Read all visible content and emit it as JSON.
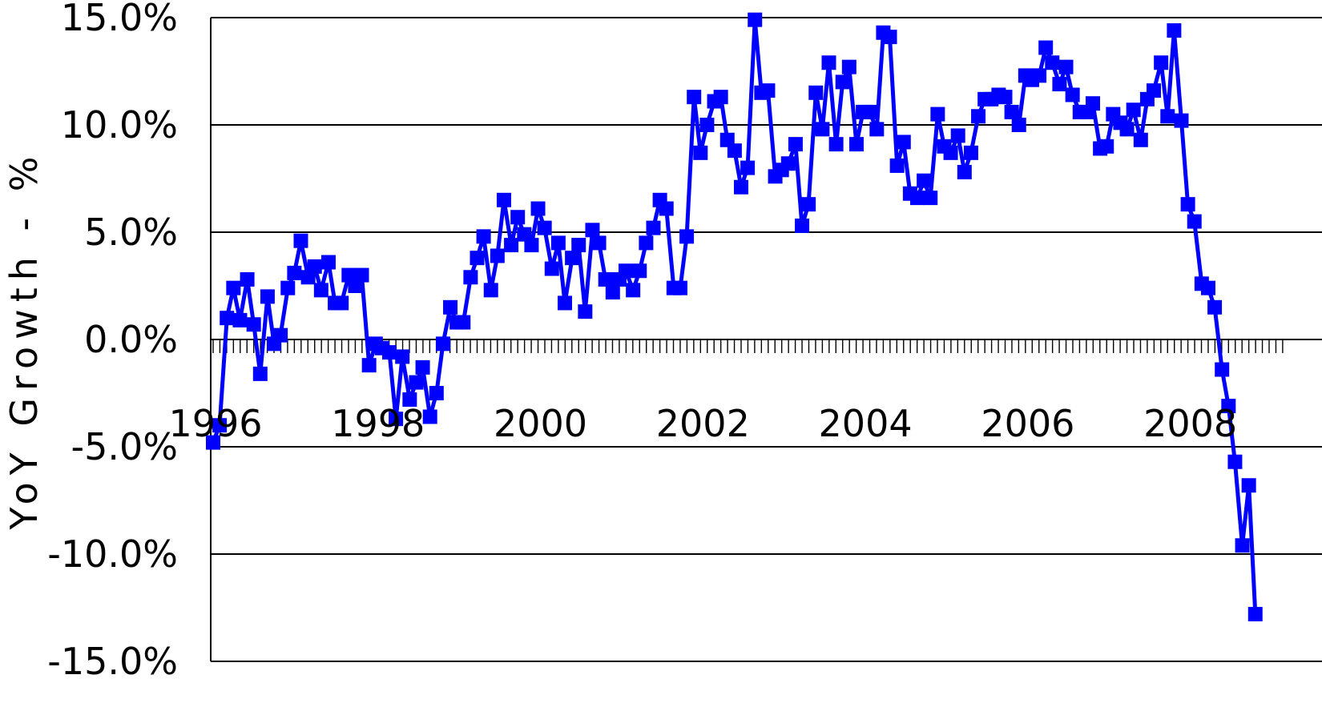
{
  "chart_data": {
    "type": "line",
    "title": "",
    "xlabel": "",
    "ylabel": "YoY Growth - %",
    "ylim": [
      -15,
      15
    ],
    "xlim": [
      1996.0,
      2009.0
    ],
    "grid": true,
    "legend": "none",
    "y_ticks": [
      "15.0%",
      "10.0%",
      "5.0%",
      "0.0%",
      "-5.0%",
      "-10.0%",
      "-15.0%"
    ],
    "y_tick_values": [
      15,
      10,
      5,
      0,
      -5,
      -10,
      -15
    ],
    "x_ticks": [
      "1996",
      "1998",
      "2000",
      "2002",
      "2004",
      "2006",
      "2008"
    ],
    "x_tick_values": [
      1996,
      1998,
      2000,
      2002,
      2004,
      2006,
      2008
    ],
    "series": [
      {
        "color": "#0000ff",
        "marker": "square",
        "points": [
          [
            1996.0,
            -4.8
          ],
          [
            1996.08,
            -4.0
          ],
          [
            1996.17,
            1.0
          ],
          [
            1996.25,
            2.4
          ],
          [
            1996.33,
            0.9
          ],
          [
            1996.42,
            2.8
          ],
          [
            1996.5,
            0.7
          ],
          [
            1996.58,
            -1.6
          ],
          [
            1996.67,
            2.0
          ],
          [
            1996.75,
            -0.2
          ],
          [
            1996.83,
            0.2
          ],
          [
            1996.92,
            2.4
          ],
          [
            1997.0,
            3.1
          ],
          [
            1997.08,
            4.6
          ],
          [
            1997.17,
            2.9
          ],
          [
            1997.25,
            3.4
          ],
          [
            1997.33,
            2.3
          ],
          [
            1997.42,
            3.6
          ],
          [
            1997.5,
            1.7
          ],
          [
            1997.58,
            1.7
          ],
          [
            1997.67,
            3.0
          ],
          [
            1997.75,
            2.5
          ],
          [
            1997.83,
            3.0
          ],
          [
            1997.92,
            -1.2
          ],
          [
            1998.0,
            -0.2
          ],
          [
            1998.08,
            -0.4
          ],
          [
            1998.17,
            -0.6
          ],
          [
            1998.25,
            -3.7
          ],
          [
            1998.33,
            -0.8
          ],
          [
            1998.42,
            -2.8
          ],
          [
            1998.5,
            -2.0
          ],
          [
            1998.58,
            -1.3
          ],
          [
            1998.67,
            -3.6
          ],
          [
            1998.75,
            -2.5
          ],
          [
            1998.83,
            -0.2
          ],
          [
            1998.92,
            1.5
          ],
          [
            1999.0,
            0.8
          ],
          [
            1999.08,
            0.8
          ],
          [
            1999.17,
            2.9
          ],
          [
            1999.25,
            3.8
          ],
          [
            1999.33,
            4.8
          ],
          [
            1999.42,
            2.3
          ],
          [
            1999.5,
            3.9
          ],
          [
            1999.58,
            6.5
          ],
          [
            1999.67,
            4.4
          ],
          [
            1999.75,
            5.7
          ],
          [
            1999.83,
            4.9
          ],
          [
            1999.92,
            4.4
          ],
          [
            2000.0,
            6.1
          ],
          [
            2000.08,
            5.2
          ],
          [
            2000.17,
            3.3
          ],
          [
            2000.25,
            4.5
          ],
          [
            2000.33,
            1.7
          ],
          [
            2000.42,
            3.8
          ],
          [
            2000.5,
            4.4
          ],
          [
            2000.58,
            1.3
          ],
          [
            2000.67,
            5.1
          ],
          [
            2000.75,
            4.5
          ],
          [
            2000.83,
            2.8
          ],
          [
            2000.92,
            2.2
          ],
          [
            2001.0,
            2.8
          ],
          [
            2001.08,
            3.2
          ],
          [
            2001.17,
            2.3
          ],
          [
            2001.25,
            3.2
          ],
          [
            2001.33,
            4.5
          ],
          [
            2001.42,
            5.2
          ],
          [
            2001.5,
            6.5
          ],
          [
            2001.58,
            6.1
          ],
          [
            2001.67,
            2.4
          ],
          [
            2001.75,
            2.4
          ],
          [
            2001.83,
            4.8
          ],
          [
            2001.92,
            11.3
          ],
          [
            2002.0,
            8.7
          ],
          [
            2002.08,
            10.0
          ],
          [
            2002.17,
            11.1
          ],
          [
            2002.25,
            11.3
          ],
          [
            2002.33,
            9.3
          ],
          [
            2002.42,
            8.8
          ],
          [
            2002.5,
            7.1
          ],
          [
            2002.58,
            8.0
          ],
          [
            2002.67,
            14.9
          ],
          [
            2002.75,
            11.5
          ],
          [
            2002.83,
            11.6
          ],
          [
            2002.92,
            7.6
          ],
          [
            2003.0,
            7.9
          ],
          [
            2003.08,
            8.2
          ],
          [
            2003.17,
            9.1
          ],
          [
            2003.25,
            5.3
          ],
          [
            2003.33,
            6.3
          ],
          [
            2003.42,
            11.5
          ],
          [
            2003.5,
            9.8
          ],
          [
            2003.58,
            12.9
          ],
          [
            2003.67,
            9.1
          ],
          [
            2003.75,
            12.0
          ],
          [
            2003.83,
            12.7
          ],
          [
            2003.92,
            9.1
          ],
          [
            2004.0,
            10.6
          ],
          [
            2004.08,
            10.6
          ],
          [
            2004.17,
            9.8
          ],
          [
            2004.25,
            14.3
          ],
          [
            2004.33,
            14.1
          ],
          [
            2004.42,
            8.1
          ],
          [
            2004.5,
            9.2
          ],
          [
            2004.58,
            6.8
          ],
          [
            2004.67,
            6.6
          ],
          [
            2004.75,
            7.4
          ],
          [
            2004.83,
            6.6
          ],
          [
            2004.92,
            10.5
          ],
          [
            2005.0,
            9.0
          ],
          [
            2005.08,
            8.7
          ],
          [
            2005.17,
            9.5
          ],
          [
            2005.25,
            7.8
          ],
          [
            2005.33,
            8.7
          ],
          [
            2005.42,
            10.4
          ],
          [
            2005.5,
            11.2
          ],
          [
            2005.58,
            11.2
          ],
          [
            2005.67,
            11.4
          ],
          [
            2005.75,
            11.3
          ],
          [
            2005.83,
            10.6
          ],
          [
            2005.92,
            10.0
          ],
          [
            2006.0,
            12.3
          ],
          [
            2006.08,
            12.1
          ],
          [
            2006.17,
            12.3
          ],
          [
            2006.25,
            13.6
          ],
          [
            2006.33,
            12.9
          ],
          [
            2006.42,
            11.9
          ],
          [
            2006.5,
            12.7
          ],
          [
            2006.58,
            11.4
          ],
          [
            2006.67,
            10.6
          ],
          [
            2006.75,
            10.6
          ],
          [
            2006.83,
            11.0
          ],
          [
            2006.92,
            8.9
          ],
          [
            2007.0,
            9.0
          ],
          [
            2007.08,
            10.5
          ],
          [
            2007.17,
            10.1
          ],
          [
            2007.25,
            9.8
          ],
          [
            2007.33,
            10.7
          ],
          [
            2007.42,
            9.3
          ],
          [
            2007.5,
            11.2
          ],
          [
            2007.58,
            11.6
          ],
          [
            2007.67,
            12.9
          ],
          [
            2007.75,
            10.4
          ],
          [
            2007.83,
            14.4
          ],
          [
            2007.92,
            10.2
          ],
          [
            2008.0,
            6.3
          ],
          [
            2008.08,
            5.5
          ],
          [
            2008.17,
            2.6
          ],
          [
            2008.25,
            2.4
          ],
          [
            2008.33,
            1.5
          ],
          [
            2008.42,
            -1.4
          ],
          [
            2008.5,
            -3.1
          ],
          [
            2008.58,
            -5.7
          ],
          [
            2008.67,
            -9.6
          ],
          [
            2008.75,
            -6.8
          ],
          [
            2008.83,
            -12.8
          ]
        ]
      }
    ]
  }
}
